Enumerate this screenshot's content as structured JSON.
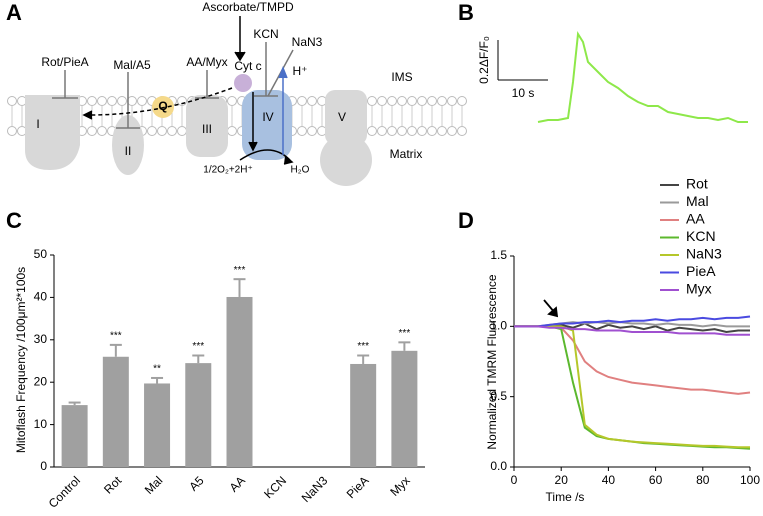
{
  "panel_labels": [
    "A",
    "B",
    "C",
    "D"
  ],
  "diagram": {
    "labels": [
      "Ascorbate/TMPD",
      "Rot/PieA",
      "Mal/A5",
      "AA/Myx",
      "KCN",
      "NaN3",
      "H⁺",
      "Cyt c",
      "IMS",
      "Matrix",
      "Q",
      "I",
      "II",
      "III",
      "IV",
      "V",
      "1/2O₂+2H⁺",
      "H₂O"
    ]
  },
  "chart_data": [
    {
      "type": "trace",
      "color": "#8ee84a",
      "scale_y": {
        "value": 0.2,
        "label": "0.2ΔF/F₀"
      },
      "scale_x": {
        "value": 10,
        "label": "10 s"
      },
      "x": [
        0,
        2,
        4,
        6,
        7,
        8,
        9,
        10,
        12,
        14,
        16,
        18,
        20,
        22,
        24,
        26,
        28,
        30,
        32,
        34,
        36,
        38,
        40,
        42
      ],
      "values": [
        0,
        0.01,
        0.01,
        0.02,
        0.2,
        0.44,
        0.4,
        0.3,
        0.25,
        0.2,
        0.17,
        0.13,
        0.1,
        0.08,
        0.08,
        0.05,
        0.04,
        0.03,
        0.02,
        0.02,
        0.01,
        0.02,
        0.0,
        0.0
      ]
    },
    {
      "type": "bar",
      "ylabel": "Mitoflash Frequency /100μm²*100s",
      "color": "#a0a0a0",
      "categories": [
        "Control",
        "Rot",
        "Mal",
        "A5",
        "AA",
        "KCN",
        "NaN3",
        "PieA",
        "Myx"
      ],
      "values": [
        14.6,
        26,
        19.7,
        24.5,
        40.1,
        null,
        null,
        24.3,
        27.4
      ],
      "errors": [
        0.6,
        2.8,
        1.3,
        1.8,
        4.2,
        null,
        null,
        2,
        2
      ],
      "annotations": [
        null,
        "***",
        "**",
        "***",
        "***",
        null,
        null,
        "***",
        "***"
      ],
      "ylim": [
        0,
        50
      ],
      "yticks": [
        0,
        10,
        20,
        30,
        40,
        50
      ]
    },
    {
      "type": "line",
      "xlabel": "Time /s",
      "ylabel": "Normalized TMRM Fluorescence",
      "x": [
        0,
        5,
        10,
        15,
        20,
        25,
        30,
        35,
        40,
        45,
        50,
        55,
        60,
        65,
        70,
        75,
        80,
        85,
        90,
        95,
        100
      ],
      "xlim": [
        0,
        100
      ],
      "xticks": [
        0,
        20,
        40,
        60,
        80,
        100
      ],
      "ylim": [
        0,
        1.5
      ],
      "yticks": [
        {
          "value": 0,
          "label": "0.0"
        },
        {
          "value": 0.5,
          "label": "0.5"
        },
        {
          "value": 1,
          "label": "1.0"
        },
        {
          "value": 1.5,
          "label": "1.5"
        }
      ],
      "series": [
        {
          "name": "Rot",
          "color": "#444444",
          "values": [
            1,
            1,
            1,
            1,
            1.01,
            0.99,
            1.02,
            0.98,
            1.01,
            0.99,
            1.0,
            0.98,
            1.0,
            0.97,
            0.99,
            0.98,
            0.97,
            0.98,
            0.96,
            0.97,
            0.97
          ]
        },
        {
          "name": "Mal",
          "color": "#9a9a9a",
          "values": [
            1,
            1,
            1,
            1.01,
            1.02,
            1.03,
            1.02,
            1.03,
            1.02,
            1.03,
            1.02,
            1.02,
            1.01,
            1.02,
            1.01,
            1.01,
            1.0,
            1.01,
            1.0,
            1.0,
            1.0
          ]
        },
        {
          "name": "AA",
          "color": "#e08080",
          "values": [
            1,
            1,
            1,
            1,
            0.99,
            0.9,
            0.75,
            0.68,
            0.64,
            0.62,
            0.6,
            0.59,
            0.58,
            0.57,
            0.56,
            0.55,
            0.55,
            0.54,
            0.53,
            0.52,
            0.53
          ]
        },
        {
          "name": "KCN",
          "color": "#5cb82e",
          "values": [
            1,
            1,
            1,
            1,
            0.98,
            0.6,
            0.28,
            0.22,
            0.2,
            0.19,
            0.18,
            0.17,
            0.165,
            0.16,
            0.155,
            0.15,
            0.145,
            0.14,
            0.14,
            0.135,
            0.13
          ]
        },
        {
          "name": "NaN3",
          "color": "#b5c72a",
          "values": [
            1,
            1,
            1,
            1,
            1.0,
            0.97,
            0.3,
            0.23,
            0.2,
            0.19,
            0.18,
            0.175,
            0.17,
            0.165,
            0.16,
            0.155,
            0.15,
            0.15,
            0.145,
            0.14,
            0.14
          ]
        },
        {
          "name": "PieA",
          "color": "#4a4ae0",
          "values": [
            1,
            1,
            1,
            1.01,
            1.02,
            1.02,
            1.03,
            1.03,
            1.04,
            1.03,
            1.04,
            1.04,
            1.05,
            1.04,
            1.05,
            1.05,
            1.06,
            1.05,
            1.06,
            1.06,
            1.07
          ]
        },
        {
          "name": "Myx",
          "color": "#a050d0",
          "values": [
            1,
            1,
            1,
            0.99,
            0.99,
            0.98,
            0.98,
            0.97,
            0.97,
            0.97,
            0.96,
            0.96,
            0.96,
            0.96,
            0.95,
            0.95,
            0.95,
            0.95,
            0.94,
            0.94,
            0.94
          ]
        }
      ]
    }
  ]
}
